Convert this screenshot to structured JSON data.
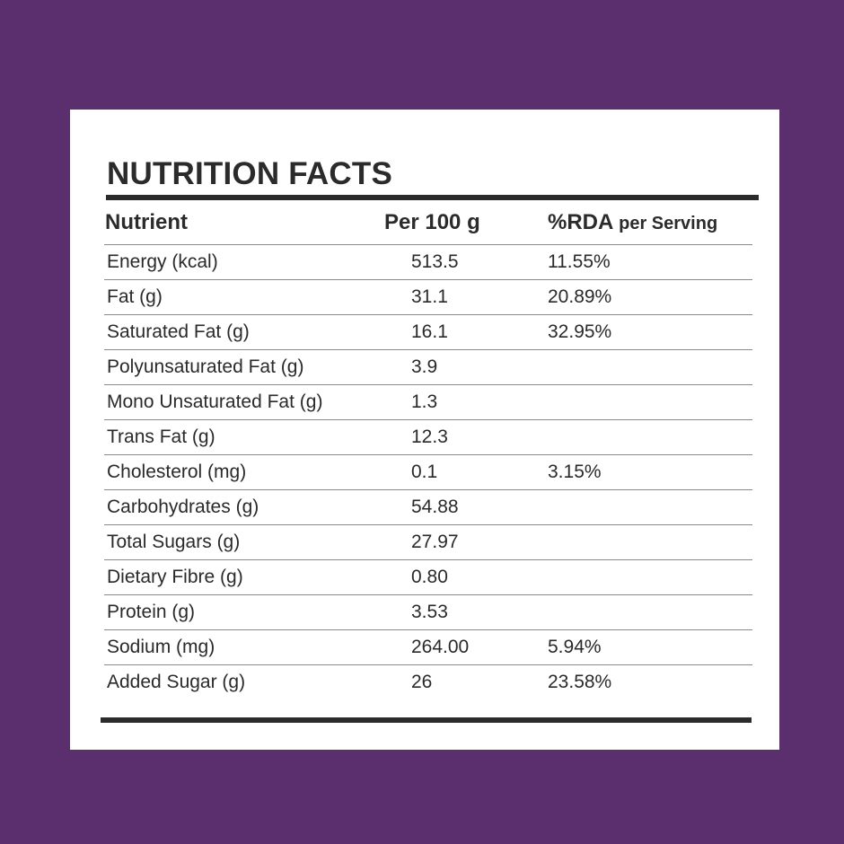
{
  "title": "NUTRITION FACTS",
  "header": {
    "nutrient": "Nutrient",
    "per": "Per 100 g",
    "rda_main": "%RDA",
    "rda_small": "per Serving"
  },
  "rows": [
    {
      "name": "Energy (kcal)",
      "per": "513.5",
      "rda": "11.55%"
    },
    {
      "name": "Fat (g)",
      "per": "31.1",
      "rda": "20.89%"
    },
    {
      "name": "Saturated Fat (g)",
      "per": "16.1",
      "rda": "32.95%"
    },
    {
      "name": "Polyunsaturated Fat (g)",
      "per": "3.9",
      "rda": ""
    },
    {
      "name": "Mono Unsaturated Fat (g)",
      "per": "1.3",
      "rda": ""
    },
    {
      "name": "Trans Fat (g)",
      "per": "12.3",
      "rda": ""
    },
    {
      "name": "Cholesterol (mg)",
      "per": "0.1",
      "rda": "3.15%"
    },
    {
      "name": "Carbohydrates (g)",
      "per": "54.88",
      "rda": ""
    },
    {
      "name": "Total Sugars (g)",
      "per": "27.97",
      "rda": ""
    },
    {
      "name": "Dietary Fibre (g)",
      "per": "0.80",
      "rda": ""
    },
    {
      "name": "Protein (g)",
      "per": "3.53",
      "rda": ""
    },
    {
      "name": "Sodium (mg)",
      "per": "264.00",
      "rda": "5.94%"
    },
    {
      "name": "Added Sugar (g)",
      "per": "26",
      "rda": "23.58%"
    }
  ],
  "colors": {
    "background": "#5b2f6e",
    "card": "#ffffff",
    "text": "#2a2a2a"
  }
}
